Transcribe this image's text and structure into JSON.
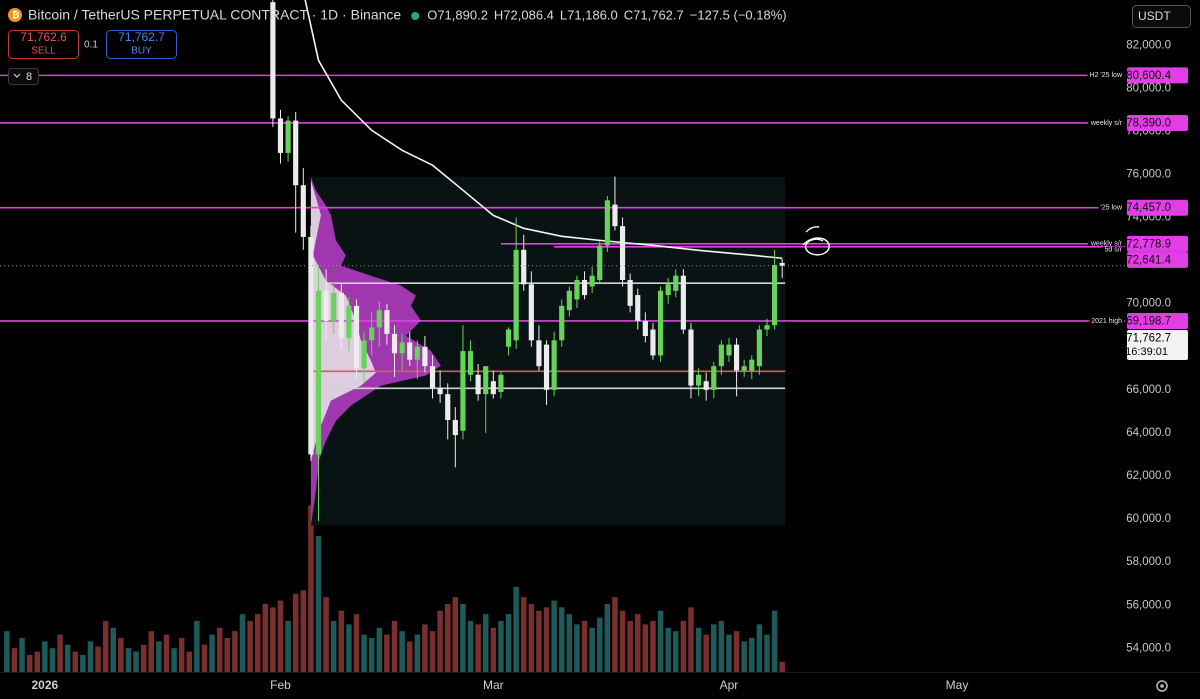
{
  "header": {
    "title": "Bitcoin / TetherUS PERPETUAL CONTRACT · 1D · Binance",
    "ohlc": [
      "O71,890.2",
      "H72,086.4",
      "L71,186.0",
      "C71,762.7",
      "−127.5 (−0.18%)"
    ],
    "sell_price": "71,762.6",
    "sell": "SELL",
    "quantity": "0.1",
    "buy_price": "71,762.7",
    "buy": "BUY",
    "indicators": "8",
    "currency": "USDT"
  },
  "chart_data": {
    "type": "candlestick",
    "x": [
      -5,
      -4,
      -3,
      -2,
      -1,
      0,
      1,
      2,
      3,
      4,
      5,
      6,
      7,
      8,
      9,
      10,
      11,
      12,
      13,
      14,
      15,
      16,
      17,
      18,
      19,
      20,
      21,
      22,
      23,
      24,
      25,
      26,
      27,
      28,
      29,
      30,
      31,
      32,
      33,
      34,
      35,
      36,
      37,
      38,
      39,
      40,
      41,
      42,
      43,
      44,
      45,
      46,
      47,
      48,
      49,
      50,
      51,
      52,
      53,
      54,
      55,
      56,
      57,
      58,
      59,
      60,
      61,
      62,
      63,
      64,
      65,
      66,
      67,
      68,
      69,
      70,
      71,
      72,
      73,
      74,
      75,
      76,
      77,
      78,
      79,
      80,
      81,
      82,
      83,
      84,
      85,
      86,
      87,
      88,
      89,
      90,
      91,
      92,
      93,
      94,
      95,
      96,
      97
    ],
    "open": [
      null,
      null,
      null,
      null,
      null,
      null,
      null,
      null,
      null,
      null,
      null,
      null,
      null,
      null,
      null,
      null,
      null,
      null,
      null,
      null,
      null,
      null,
      null,
      null,
      null,
      null,
      null,
      null,
      null,
      null,
      null,
      null,
      null,
      null,
      null,
      84000,
      78600,
      77000,
      78500,
      75500,
      73100,
      63000,
      70600,
      69200,
      70500,
      68400,
      69900,
      67000,
      68300,
      68900,
      69700,
      68600,
      67700,
      68200,
      67400,
      68000,
      67100,
      66100,
      65800,
      64600,
      64100,
      66700,
      66700,
      65800,
      66400,
      65900,
      68000,
      68300,
      72500,
      70900,
      68300,
      68100,
      66000,
      68300,
      69700,
      70200,
      71100,
      70800,
      71100,
      72700,
      74600,
      73600,
      71100,
      70400,
      69200,
      68800,
      67600,
      70400,
      70600,
      71300,
      68800,
      66200,
      66400,
      66000,
      67100,
      67600,
      68100,
      66900,
      66900,
      67100,
      68800,
      69000,
      71890.2
    ],
    "high": [
      null,
      null,
      null,
      null,
      null,
      null,
      null,
      null,
      null,
      null,
      null,
      null,
      null,
      null,
      null,
      null,
      null,
      null,
      null,
      null,
      null,
      null,
      null,
      null,
      null,
      null,
      null,
      null,
      null,
      null,
      null,
      null,
      null,
      null,
      null,
      85500,
      79000,
      78700,
      78900,
      76300,
      73600,
      71800,
      71600,
      71000,
      70900,
      70300,
      70200,
      68700,
      69600,
      70100,
      70000,
      69000,
      68600,
      68700,
      68300,
      68500,
      67600,
      66900,
      66300,
      65200,
      69000,
      68300,
      67200,
      66900,
      66900,
      66900,
      68900,
      74000,
      73200,
      71500,
      69000,
      68300,
      68700,
      70200,
      70800,
      71300,
      71500,
      71700,
      72900,
      75000,
      75900,
      74000,
      71400,
      70700,
      69600,
      69100,
      70800,
      71200,
      71600,
      71600,
      69100,
      67000,
      66800,
      67300,
      68300,
      68400,
      68400,
      67400,
      67600,
      69000,
      69300,
      72500,
      72086.4
    ],
    "low": [
      null,
      null,
      null,
      null,
      null,
      null,
      null,
      null,
      null,
      null,
      null,
      null,
      null,
      null,
      null,
      null,
      null,
      null,
      null,
      null,
      null,
      null,
      null,
      null,
      null,
      null,
      null,
      null,
      null,
      null,
      null,
      null,
      null,
      null,
      null,
      78200,
      76500,
      76600,
      73300,
      72500,
      62700,
      59900,
      68300,
      68600,
      67900,
      67800,
      66500,
      66300,
      67600,
      68000,
      68100,
      66600,
      66900,
      67100,
      66500,
      66800,
      65600,
      65400,
      63700,
      62400,
      63700,
      66400,
      65500,
      64000,
      65600,
      65600,
      67600,
      67900,
      70600,
      68000,
      66900,
      65300,
      65700,
      68000,
      69400,
      69800,
      70200,
      70500,
      70900,
      72400,
      73400,
      70800,
      69600,
      68800,
      68200,
      67400,
      67300,
      70000,
      70300,
      68600,
      65600,
      65700,
      65500,
      65600,
      66700,
      67300,
      65700,
      66600,
      66500,
      66700,
      68500,
      68800,
      71186.0
    ],
    "close": [
      null,
      null,
      null,
      null,
      null,
      null,
      null,
      null,
      null,
      null,
      null,
      null,
      null,
      null,
      null,
      null,
      null,
      null,
      null,
      null,
      null,
      null,
      null,
      null,
      null,
      null,
      null,
      null,
      null,
      null,
      null,
      null,
      null,
      null,
      null,
      78600,
      77000,
      78500,
      75500,
      73100,
      63000,
      70600,
      69200,
      70500,
      68400,
      69900,
      67000,
      68300,
      68900,
      69700,
      68600,
      67700,
      68200,
      67400,
      68000,
      67100,
      66100,
      65800,
      64600,
      63900,
      67800,
      67800,
      65800,
      67100,
      65800,
      66700,
      68800,
      72500,
      70900,
      68300,
      67100,
      66000,
      68300,
      69900,
      70600,
      71100,
      70400,
      71300,
      72700,
      74800,
      73600,
      71100,
      69900,
      69200,
      68500,
      67600,
      70600,
      70900,
      71300,
      68800,
      66200,
      66700,
      66000,
      67100,
      68100,
      68100,
      66900,
      67100,
      67400,
      68800,
      69000,
      71800,
      71762.7
    ],
    "volume": [
      24,
      14,
      20,
      10,
      12,
      18,
      14,
      22,
      16,
      12,
      10,
      18,
      15,
      30,
      26,
      20,
      14,
      12,
      16,
      24,
      18,
      22,
      14,
      20,
      12,
      30,
      16,
      22,
      26,
      20,
      24,
      34,
      30,
      34,
      40,
      38,
      42,
      30,
      46,
      48,
      98,
      80,
      44,
      30,
      36,
      28,
      34,
      22,
      20,
      26,
      22,
      30,
      24,
      18,
      22,
      28,
      24,
      36,
      40,
      44,
      40,
      30,
      28,
      34,
      26,
      30,
      34,
      50,
      44,
      40,
      36,
      38,
      42,
      38,
      34,
      28,
      30,
      26,
      32,
      40,
      44,
      36,
      30,
      34,
      28,
      30,
      36,
      26,
      24,
      30,
      38,
      26,
      22,
      28,
      30,
      22,
      24,
      18,
      20,
      28,
      22,
      36,
      6
    ],
    "volume_up": [
      true,
      false,
      true,
      false,
      false,
      true,
      true,
      false,
      true,
      false,
      true,
      true,
      false,
      false,
      true,
      false,
      true,
      true,
      false,
      false,
      true,
      false,
      true,
      false,
      false,
      true,
      false,
      true,
      false,
      false,
      false,
      true,
      false,
      false,
      false,
      false,
      false,
      true,
      false,
      false,
      false,
      true,
      false,
      true,
      false,
      true,
      false,
      true,
      true,
      true,
      false,
      false,
      true,
      false,
      true,
      false,
      false,
      false,
      false,
      false,
      true,
      true,
      false,
      true,
      false,
      true,
      true,
      true,
      false,
      false,
      false,
      false,
      true,
      true,
      true,
      true,
      false,
      true,
      true,
      true,
      false,
      false,
      false,
      false,
      false,
      false,
      true,
      true,
      true,
      false,
      false,
      true,
      false,
      true,
      true,
      true,
      false,
      true,
      true,
      true,
      true,
      true,
      false
    ],
    "up_color": "#67d35a",
    "down_color": "#ececec",
    "volume_up_color": "#1e5a5a",
    "volume_down_color": "#7a2f2f",
    "xlim": [
      -5.9,
      142.1
    ],
    "ylim": [
      52900,
      84100
    ],
    "vlim": [
      0,
      395
    ],
    "grid": false,
    "xticks": [
      {
        "value": 0,
        "label": "2026"
      },
      {
        "value": 31,
        "label": "Feb"
      },
      {
        "value": 59,
        "label": "Mar"
      },
      {
        "value": 90,
        "label": "Apr"
      },
      {
        "value": 120,
        "label": "May"
      }
    ],
    "yticks": [
      {
        "value": 82000,
        "label": "82,000.0"
      },
      {
        "value": 80000,
        "label": "80,000.0"
      },
      {
        "value": 78000,
        "label": "78,000.0"
      },
      {
        "value": 76000,
        "label": "76,000.0"
      },
      {
        "value": 74000,
        "label": "74,000.0"
      },
      {
        "value": 72000,
        "label": "72,000.0"
      },
      {
        "value": 70000,
        "label": "70,000.0"
      },
      {
        "value": 68000,
        "label": "68,000.0"
      },
      {
        "value": 66000,
        "label": "66,000.0"
      },
      {
        "value": 64000,
        "label": "64,000.0"
      },
      {
        "value": 62000,
        "label": "62,000.0"
      },
      {
        "value": 60000,
        "label": "60,000.0"
      },
      {
        "value": 58000,
        "label": "58,000.0"
      },
      {
        "value": 56000,
        "label": "56,000.0"
      },
      {
        "value": 54000,
        "label": "54,000.0"
      }
    ],
    "ma": {
      "color": "#f4f4f4",
      "x": [
        34,
        36,
        39,
        43,
        47,
        51,
        55,
        59,
        63,
        68,
        73,
        80,
        86,
        93,
        97
      ],
      "values": [
        84500,
        81300,
        79450,
        78050,
        77120,
        76430,
        75270,
        74100,
        73500,
        73130,
        72940,
        72710,
        72480,
        72250,
        72110
      ]
    },
    "level_color": "#e23ee6",
    "levels": [
      {
        "label": "H2 '25 low",
        "value": 80600.4,
        "value_label": "80,600.4"
      },
      {
        "label": "weekly s/r",
        "value": 78390.0,
        "value_label": "78,390.0"
      },
      {
        "label": "'25 low",
        "value": 74457.0,
        "value_label": "74,457.0"
      },
      {
        "label": "weekly s/r",
        "value": 72778.9,
        "value_label": "72,778.9",
        "from": 60
      },
      {
        "label": "5d s/r",
        "value": 72641.4,
        "value_label": "72,641.4",
        "from": 67
      },
      {
        "label": "2021 high",
        "value": 69198.7,
        "value_label": "69,198.7"
      }
    ],
    "profile": {
      "from": 35,
      "to": 97.4,
      "top": 75900,
      "bottom": 59700,
      "poc": 66860,
      "vah": 70950,
      "val": 66070,
      "poc_color": "#e0574f",
      "va_color": "#d0d0d0"
    },
    "last_price": {
      "value": 71762.7,
      "label": "71,762.7",
      "countdown": "16:39:01"
    }
  }
}
